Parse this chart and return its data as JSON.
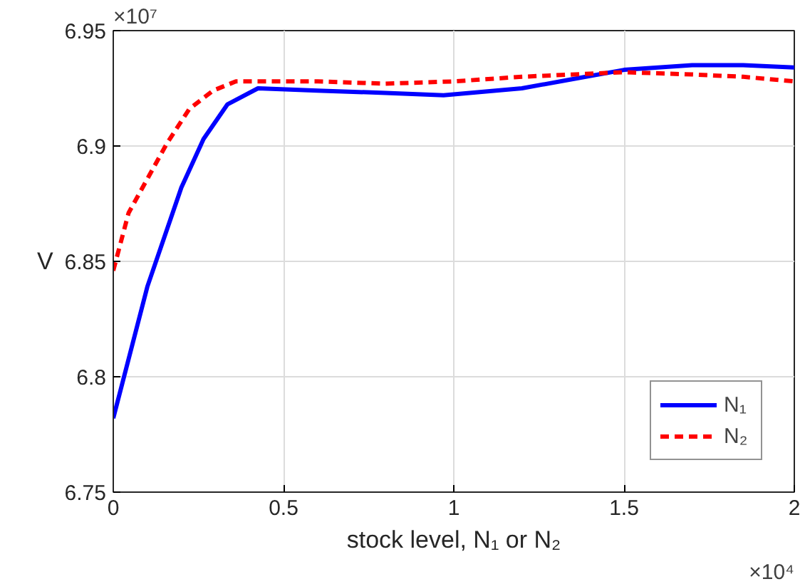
{
  "chart_data": {
    "type": "line",
    "xlabel": "stock level, N₁ or N₂",
    "ylabel": "V",
    "xlim": [
      0,
      2
    ],
    "ylim": [
      6.75,
      6.95
    ],
    "xticks": [
      0,
      0.5,
      1,
      1.5,
      2
    ],
    "yticks": [
      6.75,
      6.8,
      6.85,
      6.9,
      6.95
    ],
    "grid": true,
    "legend": "bottom right",
    "marker": "none",
    "annotations": [
      "×10⁷",
      "×10⁴"
    ],
    "series": [
      {
        "name": "N₁",
        "color": "#0000ff",
        "line_style": "solid",
        "x": [
          0,
          0.1,
          0.2,
          0.265,
          0.335,
          0.425,
          0.6,
          0.8,
          0.97,
          1.2,
          1.35,
          1.5,
          1.7,
          1.85,
          2.0
        ],
        "values": [
          6.782,
          6.839,
          6.882,
          6.903,
          6.918,
          6.925,
          6.924,
          6.923,
          6.922,
          6.925,
          6.929,
          6.933,
          6.935,
          6.935,
          6.934
        ]
      },
      {
        "name": "N₂",
        "color": "#ff0000",
        "line_style": "dashed",
        "x": [
          0,
          0.045,
          0.157,
          0.223,
          0.293,
          0.36,
          0.6,
          0.8,
          1.0,
          1.2,
          1.5,
          1.7,
          1.85,
          2.0
        ],
        "values": [
          6.846,
          6.871,
          6.901,
          6.916,
          6.924,
          6.928,
          6.928,
          6.927,
          6.928,
          6.93,
          6.932,
          6.931,
          6.93,
          6.928
        ]
      }
    ]
  }
}
